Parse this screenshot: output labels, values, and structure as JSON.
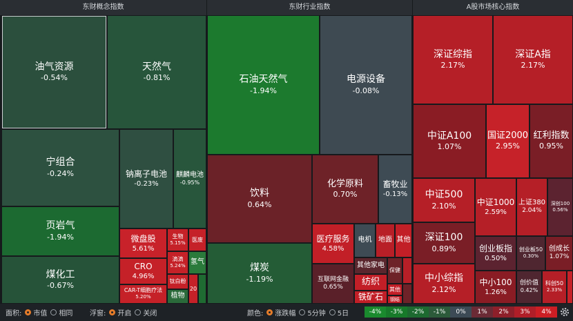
{
  "headers": {
    "concept": "东财概念指数",
    "industry": "东财行业指数",
    "core": "A股市场核心指数"
  },
  "concept": [
    {
      "name": "油气资源",
      "value": "-0.54%"
    },
    {
      "name": "天然气",
      "value": "-0.81%"
    },
    {
      "name": "宁组合",
      "value": "-0.24%"
    },
    {
      "name": "钠离子电池",
      "value": "-0.23%"
    },
    {
      "name": "麒麟电池",
      "value": "-0.95%"
    },
    {
      "name": "页岩气",
      "value": "-1.94%"
    },
    {
      "name": "煤化工",
      "value": "-0.67%"
    },
    {
      "name": "微盘股",
      "value": "5.61%"
    },
    {
      "name": "生物",
      "value": "5.15%"
    },
    {
      "name": "医废",
      "value": ""
    },
    {
      "name": "CRO",
      "value": "4.96%"
    },
    {
      "name": "滴滴",
      "value": "5.24%"
    },
    {
      "name": "氢气",
      "value": ""
    },
    {
      "name": "CAR-T细胞疗法",
      "value": "5.20%"
    },
    {
      "name": "钛白粉",
      "value": ""
    },
    {
      "name": "植物",
      "value": ""
    },
    {
      "name": "20",
      "value": ""
    }
  ],
  "industry": [
    {
      "name": "石油天然气",
      "value": "-1.94%"
    },
    {
      "name": "电源设备",
      "value": "-0.08%"
    },
    {
      "name": "饮料",
      "value": "0.64%"
    },
    {
      "name": "化学原料",
      "value": "0.70%"
    },
    {
      "name": "畜牧业",
      "value": "-0.13%"
    },
    {
      "name": "煤炭",
      "value": "-1.19%"
    },
    {
      "name": "医疗服务",
      "value": "4.58%"
    },
    {
      "name": "电机",
      "value": ""
    },
    {
      "name": "地面",
      "value": ""
    },
    {
      "name": "其他",
      "value": ""
    },
    {
      "name": "其他家电",
      "value": ""
    },
    {
      "name": "互联网金融",
      "value": "0.65%"
    },
    {
      "name": "纺织",
      "value": ""
    },
    {
      "name": "保健",
      "value": ""
    },
    {
      "name": "其他",
      "value": ""
    },
    {
      "name": "铁矿石",
      "value": ""
    },
    {
      "name": "钢结",
      "value": ""
    }
  ],
  "core": [
    {
      "name": "深证综指",
      "value": "2.17%"
    },
    {
      "name": "深证A指",
      "value": "2.17%"
    },
    {
      "name": "中证A100",
      "value": "1.07%"
    },
    {
      "name": "国证2000",
      "value": "2.95%"
    },
    {
      "name": "红利指数",
      "value": "0.95%"
    },
    {
      "name": "中证500",
      "value": "2.10%"
    },
    {
      "name": "中证1000",
      "value": "2.59%"
    },
    {
      "name": "上证380",
      "value": "2.04%"
    },
    {
      "name": "深创100",
      "value": "0.56%"
    },
    {
      "name": "深证100",
      "value": "0.89%"
    },
    {
      "name": "创业板指",
      "value": "0.50%"
    },
    {
      "name": "创业板50",
      "value": "0.30%"
    },
    {
      "name": "创成长",
      "value": "1.07%"
    },
    {
      "name": "中小综指",
      "value": "2.12%"
    },
    {
      "name": "中小100",
      "value": "1.26%"
    },
    {
      "name": "创价值",
      "value": "0.42%"
    },
    {
      "name": "科创50",
      "value": "2.33%"
    }
  ],
  "footer": {
    "area_label": "面积:",
    "area_opt1": "市值",
    "area_opt2": "相同",
    "float_label": "浮窗:",
    "float_opt1": "开启",
    "float_opt2": "关闭",
    "color_label": "颜色:",
    "color_opt1": "涨跌幅",
    "color_opt2": "5分钟",
    "color_opt3": "5日",
    "legend": [
      "-4%",
      "-3%",
      "-2%",
      "-1%",
      "0%",
      "1%",
      "2%",
      "3%",
      "4%"
    ]
  },
  "colors": {
    "legend": [
      "#1a8a2e",
      "#177a2a",
      "#1d6a30",
      "#2c5a3a",
      "#3c4a55",
      "#6b2a35",
      "#8e1f2a",
      "#b01e28",
      "#cc1e24"
    ]
  }
}
